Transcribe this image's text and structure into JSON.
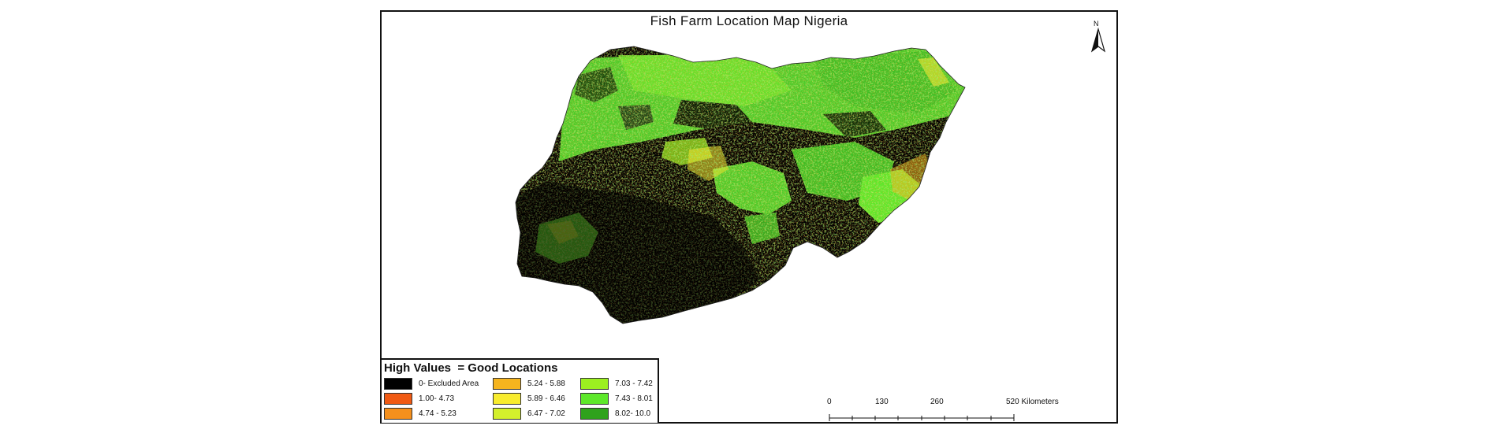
{
  "map": {
    "title": "Fish Farm Location Map Nigeria",
    "north_label": "N",
    "icons": {
      "north_arrow": "north-arrow-icon"
    }
  },
  "legend": {
    "title": "High Values  = Good Locations",
    "items": [
      {
        "label": "0- Excluded Area",
        "color": "#000000"
      },
      {
        "label": "1.00- 4.73",
        "color": "#f05a14"
      },
      {
        "label": "4.74 - 5.23",
        "color": "#f5901c"
      },
      {
        "label": "5.24 - 5.88",
        "color": "#f5b41e"
      },
      {
        "label": "5.89 - 6.46",
        "color": "#f8ec2e"
      },
      {
        "label": "6.47 - 7.02",
        "color": "#d4f02c"
      },
      {
        "label": "7.03 - 7.42",
        "color": "#9cf020"
      },
      {
        "label": "7.43 - 8.01",
        "color": "#5de82a"
      },
      {
        "label": "8.02- 10.0",
        "color": "#2fa21c"
      }
    ]
  },
  "scale": {
    "ticks": [
      "0",
      "130",
      "260",
      "520 Kilometers"
    ]
  }
}
